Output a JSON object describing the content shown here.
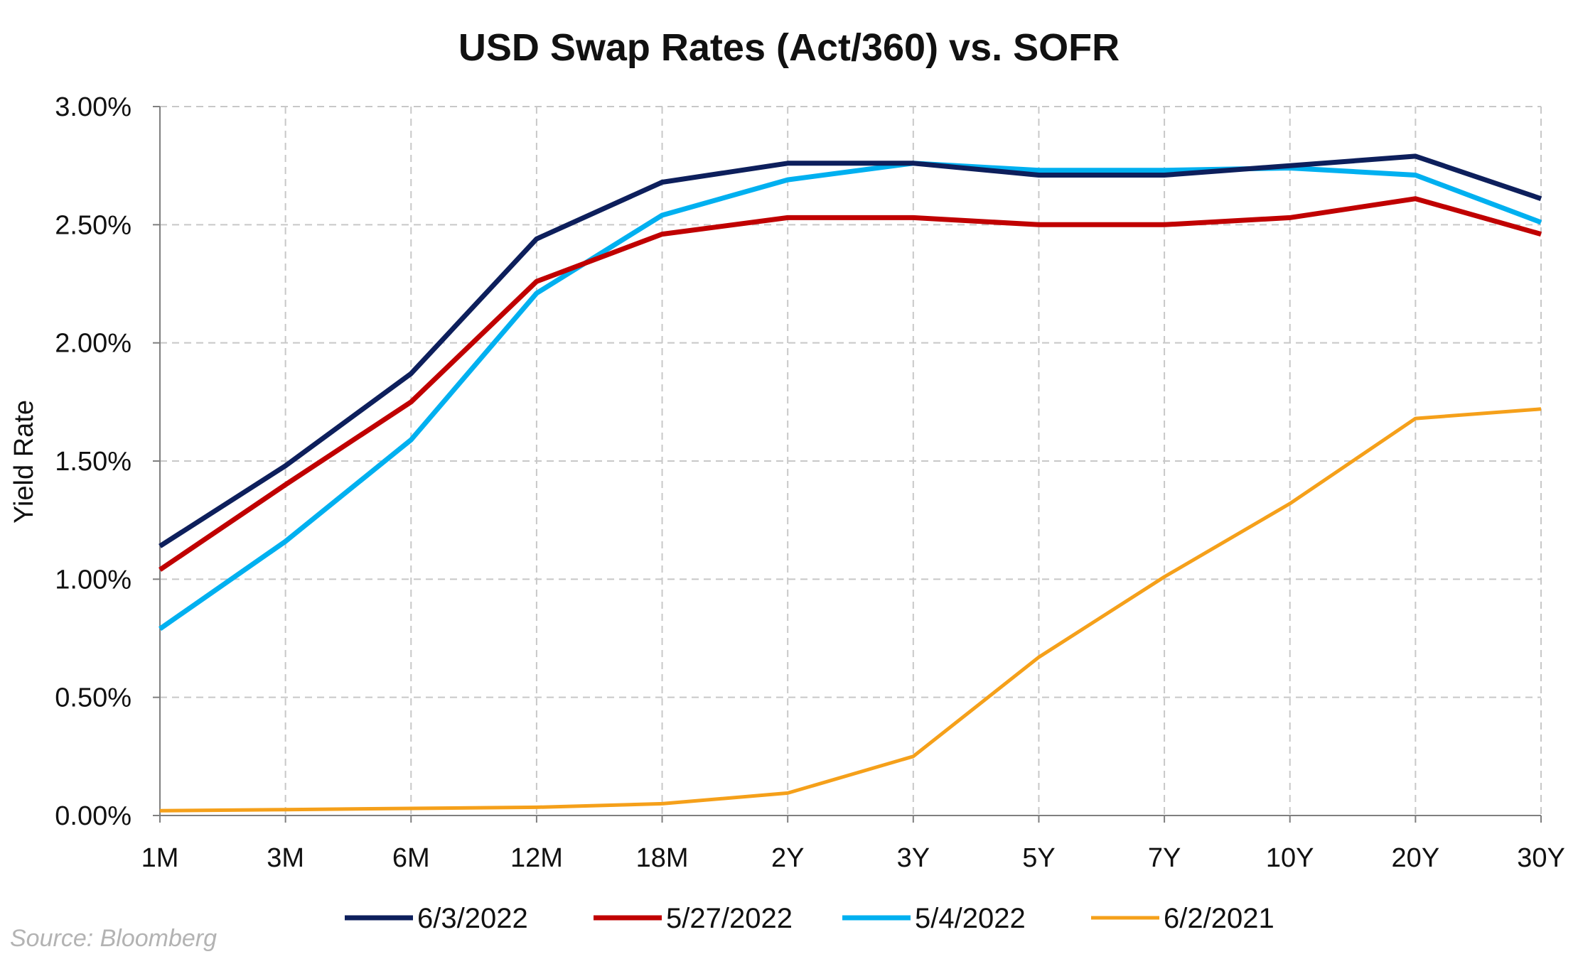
{
  "source": "Source: Bloomberg",
  "chart_data": {
    "type": "line",
    "title": "USD Swap Rates (Act/360) vs. SOFR",
    "xlabel": "",
    "ylabel": "Yield Rate",
    "categories": [
      "1M",
      "3M",
      "6M",
      "12M",
      "18M",
      "2Y",
      "3Y",
      "5Y",
      "7Y",
      "10Y",
      "20Y",
      "30Y"
    ],
    "ylim": [
      0,
      3.0
    ],
    "yticks": [
      0,
      0.5,
      1.0,
      1.5,
      2.0,
      2.5,
      3.0
    ],
    "ytick_labels": [
      "0.00%",
      "0.50%",
      "1.00%",
      "1.50%",
      "2.00%",
      "2.50%",
      "3.00%"
    ],
    "grid": true,
    "legend_position": "bottom",
    "series": [
      {
        "name": "6/3/2022",
        "color": "#0d1f5c",
        "values": [
          1.14,
          1.48,
          1.87,
          2.44,
          2.68,
          2.76,
          2.76,
          2.71,
          2.71,
          2.75,
          2.79,
          2.61
        ]
      },
      {
        "name": "5/27/2022",
        "color": "#c00000",
        "values": [
          1.04,
          1.4,
          1.75,
          2.26,
          2.46,
          2.53,
          2.53,
          2.5,
          2.5,
          2.53,
          2.61,
          2.46
        ]
      },
      {
        "name": "5/4/2022",
        "color": "#00b0f0",
        "values": [
          0.79,
          1.16,
          1.59,
          2.21,
          2.54,
          2.69,
          2.76,
          2.73,
          2.73,
          2.74,
          2.71,
          2.51
        ]
      },
      {
        "name": "6/2/2021",
        "color": "#f5a01a",
        "values": [
          0.02,
          0.025,
          0.03,
          0.035,
          0.05,
          0.095,
          0.25,
          0.67,
          1.01,
          1.32,
          1.68,
          1.72
        ]
      }
    ]
  }
}
